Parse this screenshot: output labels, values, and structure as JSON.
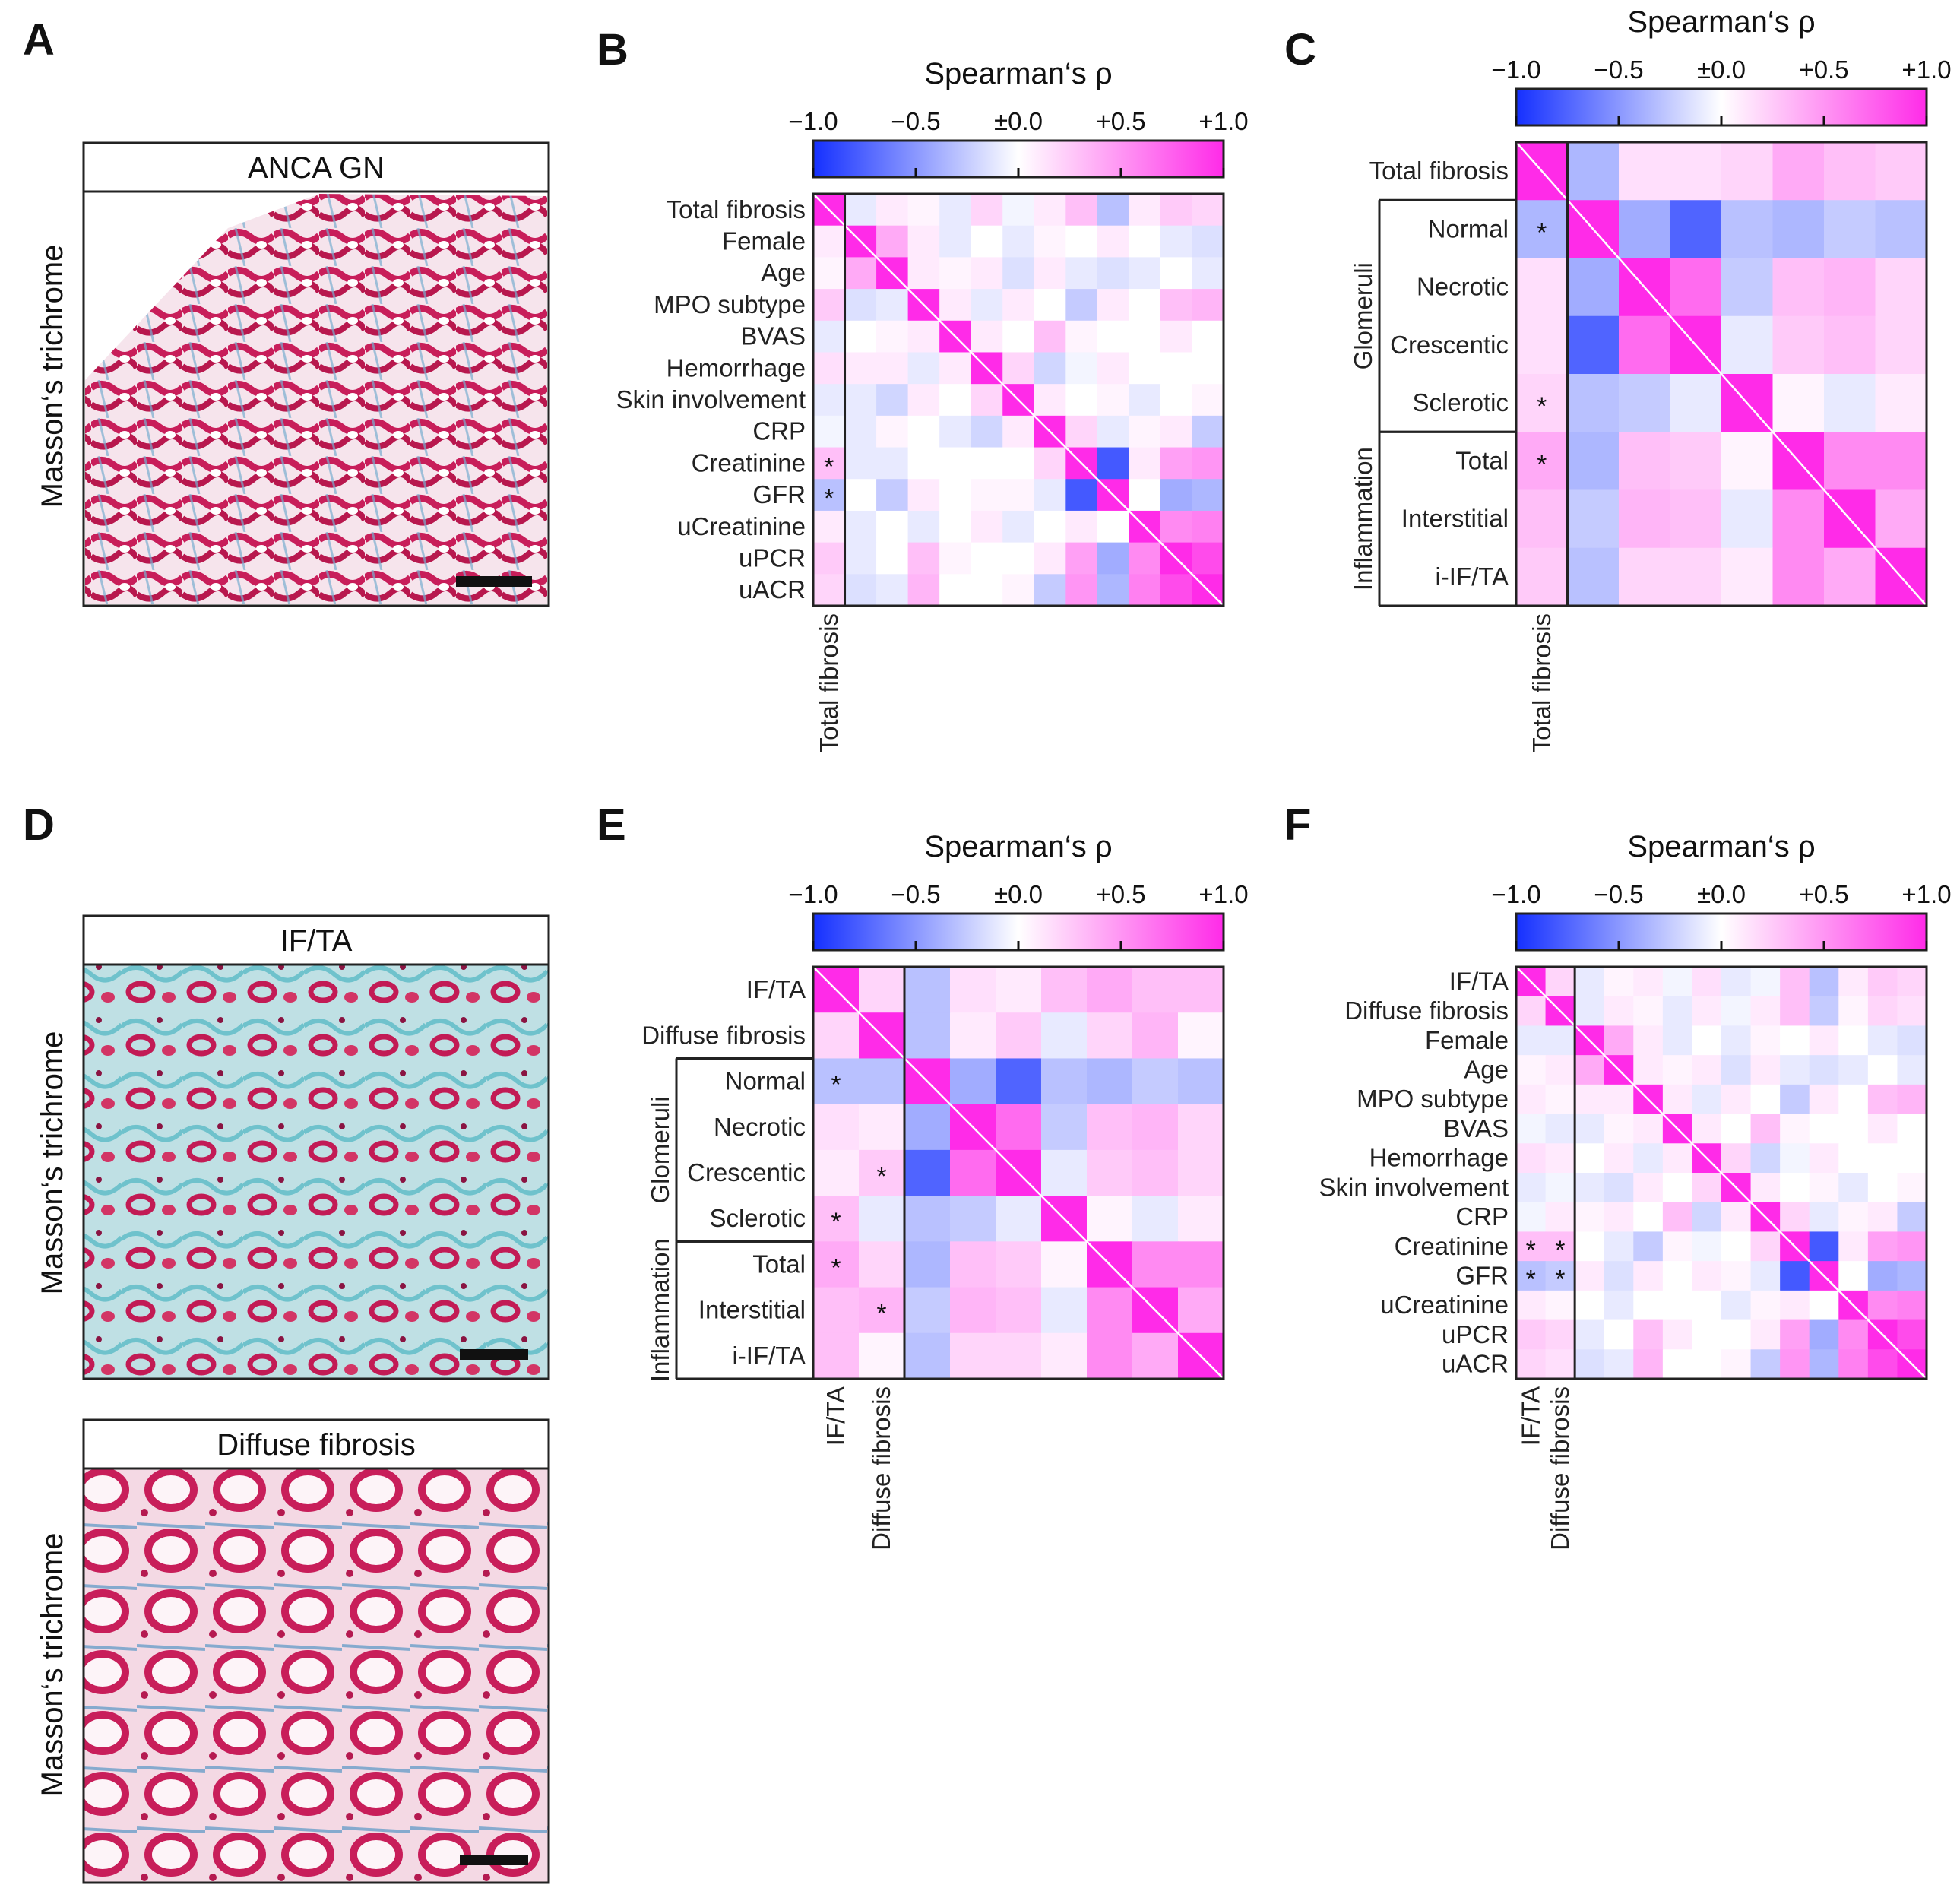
{
  "panels": {
    "A": "A",
    "B": "B",
    "C": "C",
    "D": "D",
    "E": "E",
    "F": "F"
  },
  "micrographs": {
    "stain_label": "Masson‘s trichrome",
    "A_title": "ANCA GN",
    "D1_title": "IF/TA",
    "D2_title": "Diffuse fibrosis"
  },
  "colorbar": {
    "title": "Spearman‘s ρ",
    "ticks": [
      "−1.0",
      "−0.5",
      "±0.0",
      "+0.5",
      "+1.0"
    ],
    "colors": {
      "neg": "#1530ff",
      "mid": "#ffffff",
      "pos": "#ff2be8"
    }
  },
  "chart_data": [
    {
      "id": "B",
      "type": "heatmap",
      "rows": [
        "Total fibrosis",
        "Female",
        "Age",
        "MPO subtype",
        "BVAS",
        "Hemorrhage",
        "Skin involvement",
        "CRP",
        "Creatinine",
        "GFR",
        "uCreatinine",
        "uPCR",
        "uACR"
      ],
      "col_labels": [
        "Total fibrosis"
      ],
      "ncols": 13,
      "vmin": -1,
      "vmax": 1,
      "values": [
        [
          1.0,
          -0.1,
          0.1,
          0.05,
          -0.1,
          0.2,
          -0.05,
          0.1,
          0.3,
          -0.3,
          0.1,
          0.25,
          0.2
        ],
        [
          0.1,
          1.0,
          0.4,
          0.1,
          -0.1,
          0.0,
          -0.1,
          0.05,
          0.0,
          0.1,
          0.0,
          -0.1,
          -0.15
        ],
        [
          0.05,
          0.4,
          1.0,
          0.1,
          0.05,
          0.1,
          -0.15,
          0.1,
          -0.1,
          -0.15,
          -0.1,
          0.0,
          -0.1
        ],
        [
          0.25,
          -0.15,
          -0.1,
          1.0,
          0.1,
          -0.1,
          0.1,
          0.0,
          -0.25,
          0.1,
          0.0,
          0.3,
          0.35
        ],
        [
          -0.1,
          0.0,
          0.05,
          0.1,
          1.0,
          0.1,
          0.0,
          0.3,
          0.05,
          0.0,
          0.0,
          0.1,
          0.0
        ],
        [
          0.15,
          0.1,
          0.1,
          -0.1,
          0.1,
          1.0,
          0.2,
          -0.2,
          -0.05,
          0.1,
          0.0,
          0.0,
          0.0
        ],
        [
          -0.1,
          -0.1,
          -0.2,
          0.1,
          0.0,
          0.2,
          1.0,
          0.1,
          0.0,
          0.05,
          -0.1,
          0.0,
          0.05
        ],
        [
          -0.05,
          -0.1,
          0.05,
          0.0,
          -0.1,
          -0.2,
          0.1,
          1.0,
          0.2,
          -0.1,
          0.05,
          0.1,
          -0.25
        ],
        [
          0.3,
          -0.1,
          -0.1,
          0.0,
          0.0,
          0.0,
          0.0,
          0.2,
          1.0,
          -0.8,
          0.1,
          0.45,
          0.5
        ],
        [
          -0.3,
          0.0,
          -0.25,
          0.1,
          0.0,
          0.05,
          0.05,
          -0.1,
          -0.8,
          1.0,
          0.0,
          -0.4,
          -0.35
        ],
        [
          0.1,
          -0.1,
          0.0,
          -0.1,
          0.0,
          0.1,
          -0.1,
          0.0,
          0.1,
          0.0,
          1.0,
          0.55,
          0.6
        ],
        [
          0.25,
          -0.1,
          0.0,
          0.3,
          0.05,
          0.0,
          0.0,
          0.1,
          0.45,
          -0.4,
          0.55,
          1.0,
          0.85
        ],
        [
          0.2,
          -0.15,
          -0.1,
          0.35,
          0.0,
          0.0,
          0.05,
          -0.25,
          0.5,
          -0.35,
          0.6,
          0.85,
          1.0
        ]
      ],
      "significant": [
        [
          8,
          0
        ],
        [
          9,
          0
        ]
      ],
      "groups": []
    },
    {
      "id": "C",
      "type": "heatmap",
      "rows": [
        "Total fibrosis",
        "Normal",
        "Necrotic",
        "Crescentic",
        "Sclerotic",
        "Total",
        "Interstitial",
        "i-IF/TA"
      ],
      "col_labels": [
        "Total fibrosis"
      ],
      "ncols": 8,
      "vmin": -1,
      "vmax": 1,
      "values": [
        [
          1.0,
          -0.35,
          0.15,
          0.15,
          0.2,
          0.4,
          0.3,
          0.25
        ],
        [
          -0.35,
          1.0,
          -0.4,
          -0.75,
          -0.3,
          -0.35,
          -0.25,
          -0.3
        ],
        [
          0.15,
          -0.4,
          1.0,
          0.7,
          -0.25,
          0.3,
          0.35,
          0.2
        ],
        [
          0.15,
          -0.75,
          0.7,
          1.0,
          -0.1,
          0.25,
          0.3,
          0.2
        ],
        [
          0.2,
          -0.3,
          -0.25,
          -0.1,
          1.0,
          0.05,
          -0.1,
          0.1
        ],
        [
          0.4,
          -0.35,
          0.3,
          0.25,
          0.05,
          1.0,
          0.55,
          0.55
        ],
        [
          0.3,
          -0.25,
          0.35,
          0.3,
          -0.1,
          0.55,
          1.0,
          0.4
        ],
        [
          0.25,
          -0.3,
          0.2,
          0.2,
          0.1,
          0.55,
          0.4,
          1.0
        ]
      ],
      "significant": [
        [
          1,
          0
        ],
        [
          4,
          0
        ],
        [
          5,
          0
        ]
      ],
      "groups": [
        {
          "name": "Glomeruli",
          "start": 1,
          "end": 4
        },
        {
          "name": "Inflammation",
          "start": 5,
          "end": 7
        }
      ]
    },
    {
      "id": "E",
      "type": "heatmap",
      "rows": [
        "IF/TA",
        "Diffuse fibrosis",
        "Normal",
        "Necrotic",
        "Crescentic",
        "Sclerotic",
        "Total",
        "Interstitial",
        "i-IF/TA"
      ],
      "col_labels": [
        "IF/TA",
        "Diffuse fibrosis"
      ],
      "ncols": 9,
      "vmin": -1,
      "vmax": 1,
      "values": [
        [
          1.0,
          0.2,
          -0.3,
          0.15,
          0.1,
          0.3,
          0.4,
          0.3,
          0.3
        ],
        [
          0.2,
          1.0,
          -0.3,
          0.1,
          0.25,
          -0.1,
          0.2,
          0.35,
          0.05
        ],
        [
          -0.3,
          -0.3,
          1.0,
          -0.4,
          -0.75,
          -0.3,
          -0.35,
          -0.25,
          -0.3
        ],
        [
          0.15,
          0.1,
          -0.4,
          1.0,
          0.7,
          -0.25,
          0.3,
          0.35,
          0.2
        ],
        [
          0.1,
          0.25,
          -0.75,
          0.7,
          1.0,
          -0.1,
          0.25,
          0.3,
          0.2
        ],
        [
          0.3,
          -0.1,
          -0.3,
          -0.25,
          -0.1,
          1.0,
          0.05,
          -0.1,
          0.1
        ],
        [
          0.4,
          0.2,
          -0.35,
          0.3,
          0.25,
          0.05,
          1.0,
          0.55,
          0.55
        ],
        [
          0.3,
          0.35,
          -0.25,
          0.35,
          0.3,
          -0.1,
          0.55,
          1.0,
          0.4
        ],
        [
          0.3,
          0.05,
          -0.3,
          0.2,
          0.2,
          0.1,
          0.55,
          0.4,
          1.0
        ]
      ],
      "significant": [
        [
          2,
          0
        ],
        [
          4,
          1
        ],
        [
          5,
          0
        ],
        [
          6,
          0
        ],
        [
          7,
          1
        ]
      ],
      "groups": [
        {
          "name": "Glomeruli",
          "start": 2,
          "end": 5
        },
        {
          "name": "Inflammation",
          "start": 6,
          "end": 8
        }
      ]
    },
    {
      "id": "F",
      "type": "heatmap",
      "rows": [
        "IF/TA",
        "Diffuse fibrosis",
        "Female",
        "Age",
        "MPO subtype",
        "BVAS",
        "Hemorrhage",
        "Skin involvement",
        "CRP",
        "Creatinine",
        "GFR",
        "uCreatinine",
        "uPCR",
        "uACR"
      ],
      "col_labels": [
        "IF/TA",
        "Diffuse fibrosis"
      ],
      "ncols": 14,
      "vmin": -1,
      "vmax": 1,
      "values": [
        [
          1.0,
          0.2,
          -0.1,
          0.05,
          0.1,
          -0.05,
          0.15,
          -0.1,
          -0.05,
          0.3,
          -0.3,
          0.1,
          0.25,
          0.2
        ],
        [
          0.2,
          1.0,
          -0.1,
          0.1,
          0.05,
          -0.1,
          0.1,
          -0.05,
          0.1,
          0.3,
          -0.25,
          0.05,
          0.2,
          0.15
        ],
        [
          -0.1,
          -0.1,
          1.0,
          0.4,
          0.1,
          -0.1,
          0.0,
          -0.1,
          0.05,
          0.0,
          0.1,
          0.0,
          -0.1,
          -0.15
        ],
        [
          0.05,
          0.1,
          0.4,
          1.0,
          0.1,
          0.05,
          0.1,
          -0.15,
          0.1,
          -0.1,
          -0.15,
          -0.1,
          0.0,
          -0.1
        ],
        [
          0.1,
          0.05,
          0.1,
          0.1,
          1.0,
          0.1,
          -0.1,
          0.1,
          0.0,
          -0.25,
          0.1,
          0.0,
          0.3,
          0.35
        ],
        [
          -0.05,
          -0.1,
          -0.1,
          0.05,
          0.1,
          1.0,
          0.1,
          0.0,
          0.3,
          0.05,
          0.0,
          0.0,
          0.1,
          0.0
        ],
        [
          0.15,
          0.1,
          0.0,
          0.1,
          -0.1,
          0.1,
          1.0,
          0.2,
          -0.2,
          -0.05,
          0.1,
          0.0,
          0.0,
          0.0
        ],
        [
          -0.1,
          -0.05,
          -0.1,
          -0.15,
          0.1,
          0.0,
          0.2,
          1.0,
          0.1,
          0.0,
          0.05,
          -0.1,
          0.0,
          0.05
        ],
        [
          -0.05,
          0.1,
          0.05,
          0.1,
          0.0,
          0.3,
          -0.2,
          0.1,
          1.0,
          0.2,
          -0.1,
          0.05,
          0.1,
          -0.25
        ],
        [
          0.3,
          0.3,
          0.0,
          -0.1,
          -0.25,
          0.05,
          -0.05,
          0.0,
          0.2,
          1.0,
          -0.8,
          0.1,
          0.45,
          0.5
        ],
        [
          -0.3,
          -0.25,
          0.1,
          -0.15,
          0.1,
          0.0,
          0.1,
          0.05,
          -0.1,
          -0.8,
          1.0,
          0.0,
          -0.4,
          -0.35
        ],
        [
          0.1,
          0.05,
          0.0,
          -0.1,
          0.0,
          0.0,
          0.0,
          -0.1,
          0.05,
          0.1,
          0.0,
          1.0,
          0.55,
          0.6
        ],
        [
          0.25,
          0.2,
          -0.1,
          0.0,
          0.3,
          0.1,
          0.0,
          0.0,
          0.1,
          0.45,
          -0.4,
          0.55,
          1.0,
          0.85
        ],
        [
          0.2,
          0.15,
          -0.15,
          -0.1,
          0.35,
          0.0,
          0.0,
          0.05,
          -0.25,
          0.5,
          -0.35,
          0.6,
          0.85,
          1.0
        ]
      ],
      "significant": [
        [
          9,
          0
        ],
        [
          9,
          1
        ],
        [
          10,
          0
        ],
        [
          10,
          1
        ]
      ],
      "groups": []
    }
  ]
}
